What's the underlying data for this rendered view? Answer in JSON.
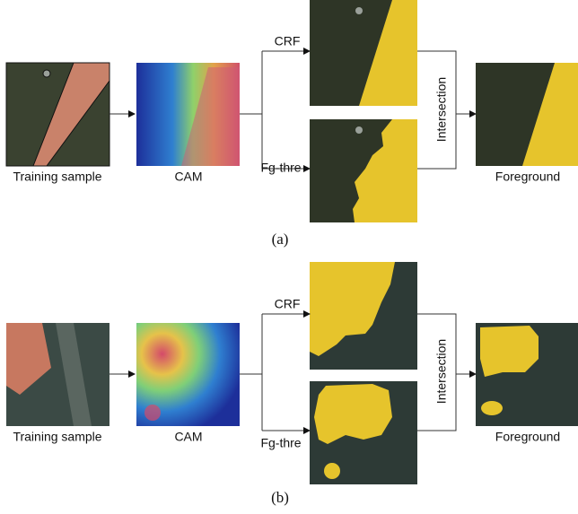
{
  "panels": [
    {
      "labels": [
        "Training sample",
        "CAM",
        "CRF",
        "Fg-thre",
        "Intersection",
        "Foreground"
      ],
      "caption": "(a)"
    },
    {
      "labels": [
        "Training sample",
        "CAM",
        "CRF",
        "Fg-thre",
        "Intersection",
        "Foreground"
      ],
      "caption": "(b)"
    }
  ]
}
